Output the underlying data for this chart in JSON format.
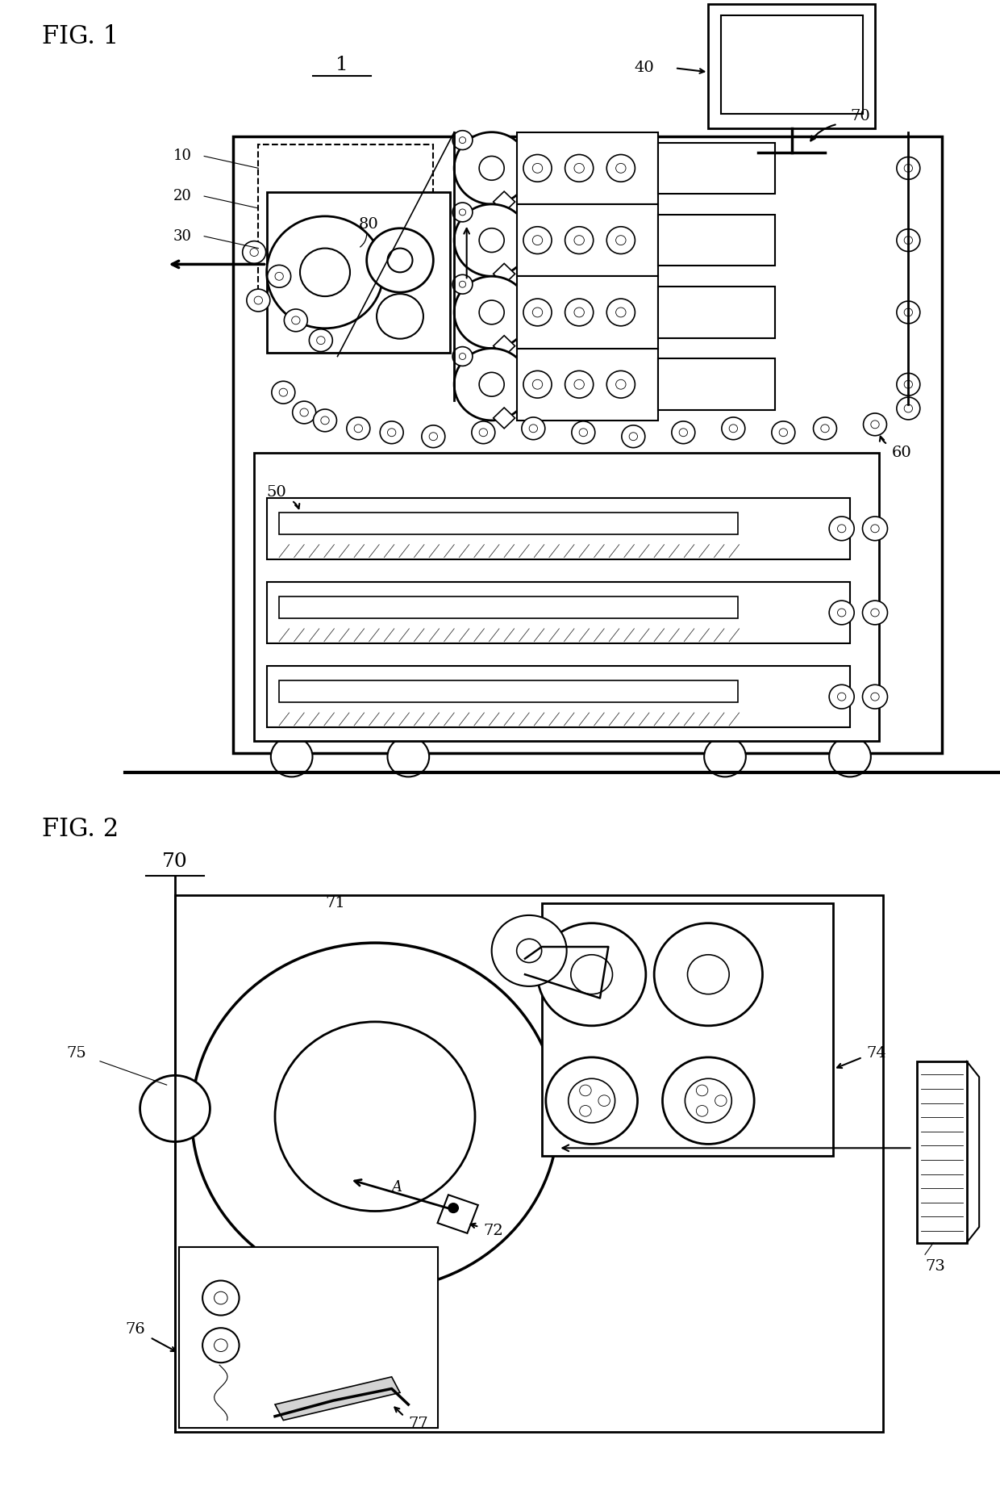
{
  "fig_title1": "FIG. 1",
  "fig_title2": "FIG. 2",
  "label1": "1",
  "label10": "10",
  "label20": "20",
  "label30": "30",
  "label40": "40",
  "label50": "50",
  "label60": "60",
  "label70": "70",
  "label80": "80",
  "label71": "71",
  "label72": "72",
  "label73": "73",
  "label74": "74",
  "label75": "75",
  "label76": "76",
  "label77": "77",
  "label_A": "A",
  "bg_color": "#ffffff",
  "line_color": "#000000",
  "fig_width": 12.4,
  "fig_height": 18.72
}
